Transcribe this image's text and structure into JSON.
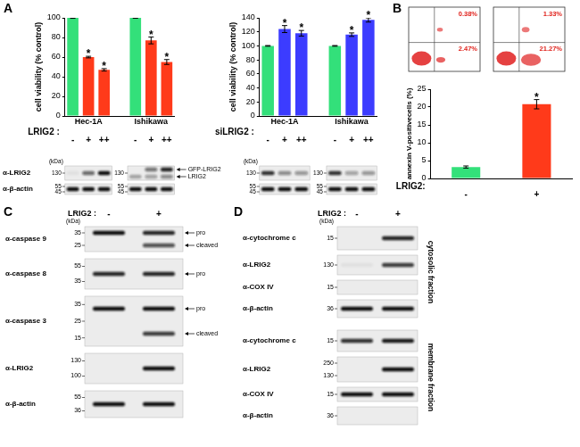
{
  "chart_data": [
    {
      "type": "bar",
      "y_label": "cell viability (% control)",
      "x_label": "LRIG2 :",
      "categories": [
        "-",
        "+",
        "++",
        null,
        "-",
        "+",
        "++"
      ],
      "values": [
        100,
        60,
        47,
        null,
        100,
        77,
        55
      ],
      "errors": [
        0.5,
        0.8,
        1.2,
        null,
        0.4,
        3.5,
        2.5
      ],
      "marks": [
        null,
        "*",
        "*",
        null,
        null,
        "*",
        "*"
      ],
      "colors": [
        "#33e07a",
        "#ff3a1a",
        "#ff3a1a",
        null,
        "#33e07a",
        "#ff3a1a",
        "#ff3a1a"
      ],
      "group_labels": [
        "Hec-1A",
        "Ishikawa"
      ],
      "ylim": [
        0,
        100
      ],
      "yticks": [
        0,
        20,
        40,
        60,
        80,
        100
      ],
      "grid": false
    },
    {
      "type": "bar",
      "y_label": "cell viability (% control)",
      "x_label": "siLRIG2 :",
      "categories": [
        "-",
        "+",
        "++",
        null,
        "-",
        "+",
        "++"
      ],
      "values": [
        100,
        124,
        118,
        null,
        100,
        116,
        137
      ],
      "errors": [
        0.5,
        5,
        4,
        null,
        0.5,
        2.5,
        3
      ],
      "marks": [
        null,
        "*",
        "*",
        null,
        null,
        "*",
        "*"
      ],
      "colors": [
        "#33e07a",
        "#3c3cff",
        "#3c3cff",
        null,
        "#33e07a",
        "#3c3cff",
        "#3c3cff"
      ],
      "group_labels": [
        "Hec-1A",
        "Ishikawa"
      ],
      "ylim": [
        0,
        140
      ],
      "yticks": [
        0,
        20,
        40,
        60,
        80,
        100,
        120,
        140
      ],
      "grid": false
    },
    {
      "type": "bar",
      "y_label": "annexin V-positivecells (%)",
      "x_label": "LRIG2:",
      "categories": [
        "-",
        "+"
      ],
      "values": [
        3.2,
        20.8
      ],
      "errors": [
        0.3,
        1.3
      ],
      "marks": [
        null,
        "*"
      ],
      "colors": [
        "#33e07a",
        "#ff3a1a"
      ],
      "ylim": [
        0,
        25
      ],
      "yticks": [
        0,
        5,
        10,
        15,
        20,
        25
      ],
      "grid": false
    }
  ],
  "figure": {
    "panel_labels": [
      "A",
      "B",
      "C",
      "D"
    ],
    "kda_label": "(kDa)",
    "A": {
      "row_labels": [
        "α-LRIG2",
        "α-β-actin"
      ],
      "blots": [
        [
          {
            "rows": [
              {
                "markers": [
                  130
                ],
                "bands": [
                  {
                    "intensity": [
                      0.05,
                      0.6,
                      1
                    ]
                  }
                ]
              },
              {
                "markers": [
                  55,
                  45
                ],
                "bands": [
                  {
                    "intensity": [
                      1,
                      1,
                      1
                    ]
                  }
                ]
              }
            ]
          },
          {
            "rows": [
              {
                "markers": [
                  130
                ],
                "bands": [
                  {
                    "name": "GFP-LRIG2",
                    "intensity": [
                      0,
                      0.55,
                      0.9
                    ]
                  },
                  {
                    "name": "LRIG2",
                    "intensity": [
                      0.3,
                      0.35,
                      0.45
                    ]
                  }
                ]
              },
              {
                "markers": [
                  55,
                  45
                ],
                "bands": [
                  {
                    "intensity": [
                      1,
                      1,
                      1
                    ]
                  }
                ]
              }
            ]
          }
        ],
        [
          {
            "rows": [
              {
                "markers": [
                  130
                ],
                "bands": [
                  {
                    "intensity": [
                      0.85,
                      0.45,
                      0.4
                    ]
                  }
                ]
              },
              {
                "markers": [
                  55,
                  45
                ],
                "bands": [
                  {
                    "intensity": [
                      1,
                      1,
                      1
                    ]
                  }
                ]
              }
            ]
          },
          {
            "rows": [
              {
                "markers": [
                  130
                ],
                "bands": [
                  {
                    "intensity": [
                      0.85,
                      0.35,
                      0.4
                    ]
                  }
                ]
              },
              {
                "markers": [
                  55,
                  45
                ],
                "bands": [
                  {
                    "intensity": [
                      1,
                      1,
                      1
                    ]
                  }
                ]
              }
            ]
          }
        ]
      ]
    },
    "B": {
      "flow_plots": [
        {
          "upper_right": {
            "value": 0.38,
            "label": "0.38%"
          },
          "lower_right": {
            "value": 2.47,
            "label": "2.47%"
          }
        },
        {
          "upper_right": {
            "value": 1.33,
            "label": "1.33%"
          },
          "lower_right": {
            "value": 21.27,
            "label": "21.27%"
          }
        }
      ]
    },
    "C": {
      "condition": "LRIG2 :",
      "lanes": [
        "-",
        "+"
      ],
      "rows": [
        {
          "label": "α-caspase 9",
          "markers": [
            35,
            25
          ],
          "bands": [
            {
              "name": "pro",
              "intensity": [
                1,
                0.9
              ]
            },
            {
              "name": "cleaved",
              "intensity": [
                0,
                0.7
              ]
            }
          ]
        },
        {
          "label": "α-caspase 8",
          "markers": [
            55,
            35
          ],
          "bands": [
            {
              "name": "pro",
              "intensity": [
                0.9,
                0.9
              ]
            }
          ]
        },
        {
          "label": "α-caspase 3",
          "markers": [
            35,
            25,
            15
          ],
          "bands": [
            {
              "name": "pro",
              "intensity": [
                1,
                1
              ]
            },
            {
              "name": "cleaved",
              "intensity": [
                0,
                0.8
              ]
            }
          ]
        },
        {
          "label": "α-LRIG2",
          "markers": [
            130,
            100
          ],
          "bands": [
            {
              "intensity": [
                0,
                1
              ]
            }
          ]
        },
        {
          "label": "α-β-actin",
          "markers": [
            55,
            36
          ],
          "bands": [
            {
              "intensity": [
                1,
                1
              ]
            }
          ]
        }
      ]
    },
    "D": {
      "condition": "LRIG2 :",
      "lanes": [
        "-",
        "+"
      ],
      "fractions": [
        {
          "name": "cytosolic fraction",
          "rows": [
            {
              "label": "α-cytochrome c",
              "markers": [
                15
              ],
              "bands": [
                {
                  "intensity": [
                    0,
                    0.9
                  ]
                }
              ]
            },
            {
              "label": "α-LRIG2",
              "markers": [
                130
              ],
              "bands": [
                {
                  "intensity": [
                    0.05,
                    0.8
                  ]
                }
              ]
            },
            {
              "label": "α-COX IV",
              "markers": [
                15
              ],
              "bands": [
                {
                  "intensity": [
                    0,
                    0
                  ]
                }
              ]
            },
            {
              "label": "α-β-actin",
              "markers": [
                36
              ],
              "bands": [
                {
                  "intensity": [
                    1,
                    1
                  ]
                }
              ]
            }
          ]
        },
        {
          "name": "membrane fraction",
          "rows": [
            {
              "label": "α-cytochrome c",
              "markers": [
                15
              ],
              "bands": [
                {
                  "intensity": [
                    0.85,
                    0.95
                  ]
                }
              ]
            },
            {
              "label": "α-LRIG2",
              "markers": [
                250,
                130
              ],
              "bands": [
                {
                  "intensity": [
                    0,
                    1
                  ]
                }
              ]
            },
            {
              "label": "α-COX IV",
              "markers": [
                15
              ],
              "bands": [
                {
                  "intensity": [
                    1,
                    1
                  ]
                }
              ]
            },
            {
              "label": "α-β-actin",
              "markers": [
                36
              ],
              "bands": [
                {
                  "intensity": [
                    0,
                    0
                  ]
                }
              ]
            }
          ]
        }
      ]
    }
  }
}
